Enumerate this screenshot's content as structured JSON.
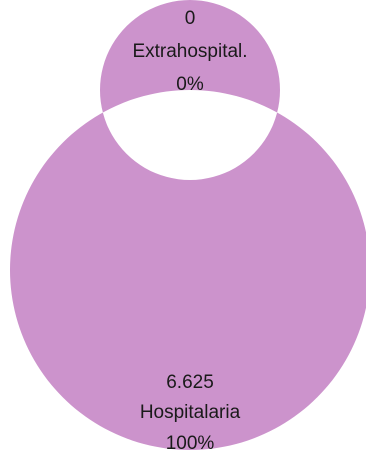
{
  "chart_data": {
    "type": "pie",
    "variant": "donut",
    "slices": [
      {
        "category": "Extrahospital.",
        "value": 0,
        "value_label": "0",
        "percent_label": "0%",
        "color": "#ffffff"
      },
      {
        "category": "Hospitalaria",
        "value": 6625,
        "value_label": "6.625",
        "percent_label": "100%",
        "color": "#cc93cc"
      }
    ],
    "legend": "none",
    "data_labels": "value, category, percent"
  }
}
